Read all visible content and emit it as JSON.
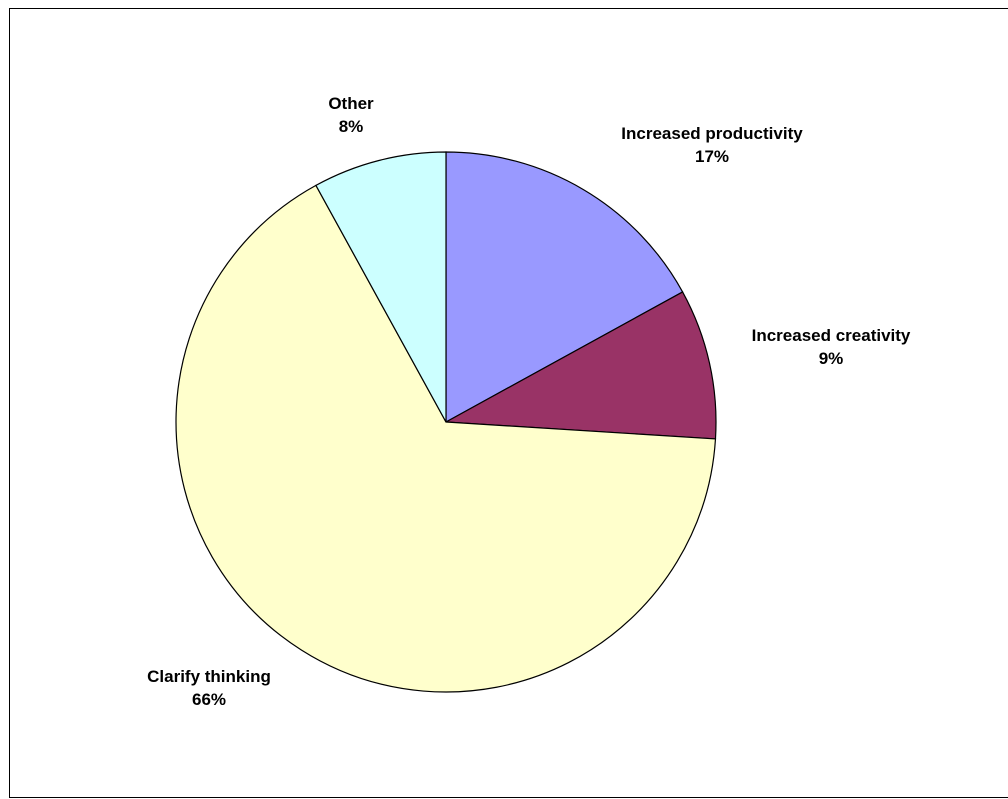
{
  "chart_data": {
    "type": "pie",
    "slices": [
      {
        "label": "Increased productivity",
        "value": 17,
        "value_label": "17%",
        "color": "#9999FF"
      },
      {
        "label": "Increased creativity",
        "value": 9,
        "value_label": "9%",
        "color": "#993366"
      },
      {
        "label": "Clarify thinking",
        "value": 66,
        "value_label": "66%",
        "color": "#FFFFCC"
      },
      {
        "label": "Other",
        "value": 8,
        "value_label": "8%",
        "color": "#CCFFFF"
      }
    ],
    "start_angle_deg": 0,
    "direction": "clockwise",
    "slice_outline_color": "#000000",
    "legend": "none"
  }
}
